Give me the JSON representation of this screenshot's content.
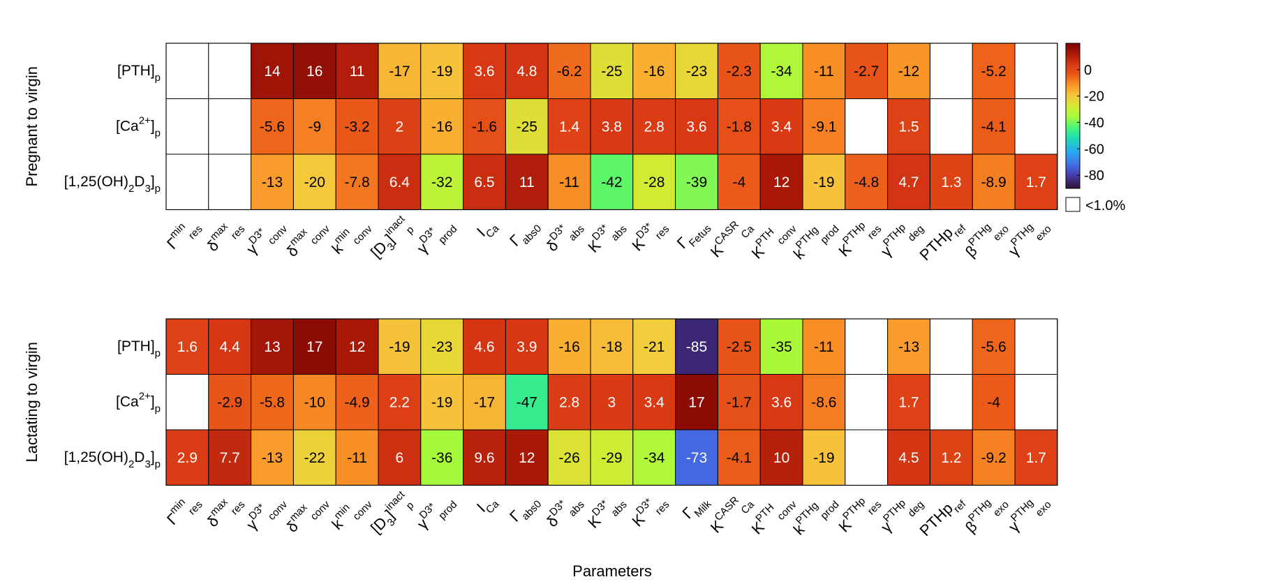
{
  "xlabel": "Parameters",
  "legend_na_label": "<1.0%",
  "colorbar_ticks": [
    0,
    -20,
    -40,
    -60,
    -80
  ],
  "row_labels": [
    {
      "main": "[PTH]",
      "sub": "p"
    },
    {
      "main": "[Ca",
      "sup": "2+",
      "after": "]",
      "sub": "p"
    },
    {
      "main": "[1,25(OH)",
      "sub1": "2",
      "mid": "D",
      "sub2": "3",
      "after": "]",
      "sub": "p"
    }
  ],
  "chart_data": [
    {
      "type": "heatmap",
      "ylabel": "Pregnant to virgin",
      "rows": [
        "[PTH]p",
        "[Ca2+]p",
        "[1,25(OH)2D3]p"
      ],
      "columns": [
        "Γres min",
        "δres max",
        "γconv D3*",
        "δconv max",
        "kconv min",
        "[D3]p inact",
        "γprod D3*",
        "ICa",
        "Γabs0",
        "δabs D3*",
        "Kabs D3*",
        "Kres D3*",
        "ΓFetus",
        "KCa CASR",
        "Kconv PTH",
        "kprod PTHg",
        "Kres PTHp",
        "γdeg PTHp",
        "PTHp ref",
        "βexo PTHg",
        "γexo PTHg"
      ],
      "values": [
        [
          null,
          null,
          14,
          16,
          11,
          -17,
          -19,
          3.6,
          4.8,
          -6.2,
          -25,
          -16,
          -23,
          -2.3,
          -34,
          -11,
          -2.7,
          -12,
          null,
          -5.2,
          null
        ],
        [
          null,
          null,
          -5.6,
          -9,
          -3.2,
          2,
          -16,
          -1.6,
          -25,
          1.4,
          3.8,
          2.8,
          3.6,
          -1.8,
          3.4,
          -9.1,
          null,
          1.5,
          null,
          -4.1,
          null
        ],
        [
          null,
          null,
          -13,
          -20,
          -7.8,
          6.4,
          -32,
          6.5,
          11,
          -11,
          -42,
          -28,
          -39,
          -4,
          12,
          -19,
          -4.8,
          4.7,
          1.3,
          -8.9,
          1.7
        ]
      ],
      "color_range": [
        -90,
        20
      ]
    },
    {
      "type": "heatmap",
      "ylabel": "Lactating to virgin",
      "rows": [
        "[PTH]p",
        "[Ca2+]p",
        "[1,25(OH)2D3]p"
      ],
      "columns": [
        "Γres min",
        "δres max",
        "γconv D3*",
        "δconv max",
        "kconv min",
        "[D3]p inact",
        "γprod D3*",
        "ICa",
        "Γabs0",
        "δabs D3*",
        "Kabs D3*",
        "Kres D3*",
        "ΓMilk",
        "KCa CASR",
        "Kconv PTH",
        "kprod PTHg",
        "Kres PTHp",
        "γdeg PTHp",
        "PTHp ref",
        "βexo PTHg",
        "γexo PTHg"
      ],
      "values": [
        [
          1.6,
          4.4,
          13,
          17,
          12,
          -19,
          -23,
          4.6,
          3.9,
          -16,
          -18,
          -21,
          -85,
          -2.5,
          -35,
          -11,
          null,
          -13,
          null,
          -5.6,
          null
        ],
        [
          null,
          -2.9,
          -5.8,
          -10,
          -4.9,
          2.2,
          -19,
          -17,
          -47,
          2.8,
          3,
          3.4,
          17,
          -1.7,
          3.6,
          -8.6,
          null,
          1.7,
          null,
          -4,
          null
        ],
        [
          2.9,
          7.7,
          -13,
          -22,
          -11,
          6,
          -36,
          9.6,
          12,
          -26,
          -29,
          -34,
          -73,
          -4.1,
          10,
          -19,
          null,
          4.5,
          1.2,
          -9.2,
          1.7
        ]
      ],
      "color_range": [
        -90,
        20
      ]
    }
  ],
  "column_labels": [
    [
      {
        "base": "Γ",
        "sup": "min",
        "sub": "res"
      },
      {
        "base": "δ",
        "sup": "max",
        "sub": "res"
      },
      {
        "base": "γ",
        "sup": "D3*",
        "sub": "conv"
      },
      {
        "base": "δ",
        "sup": "max",
        "sub": "conv"
      },
      {
        "base": "k",
        "sup": "min",
        "sub": "conv"
      },
      {
        "base": "[D",
        "mid_sub": "3",
        "after": "]",
        "sup": "inact",
        "sub": "p"
      },
      {
        "base": "γ",
        "sup": "D3*",
        "sub": "prod"
      },
      {
        "base": "I",
        "sup": "",
        "sub": "Ca"
      },
      {
        "base": "Γ",
        "sup": "",
        "sub": "abs0"
      },
      {
        "base": "δ",
        "sup": "D3*",
        "sub": "abs"
      },
      {
        "base": "K",
        "sup": "D3*",
        "sub": "abs"
      },
      {
        "base": "K",
        "sup": "D3*",
        "sub": "res"
      },
      {
        "base": "Γ",
        "sup": "",
        "sub": "Fetus"
      },
      {
        "base": "K",
        "sup": "CASR",
        "sub": "Ca"
      },
      {
        "base": "K",
        "sup": "PTH",
        "sub": "conv"
      },
      {
        "base": "k",
        "sup": "PTHg",
        "sub": "prod"
      },
      {
        "base": "K",
        "sup": "PTHp",
        "sub": "res"
      },
      {
        "base": "γ",
        "sup": "PTHp",
        "sub": "deg"
      },
      {
        "base": "PTHp",
        "sup": "",
        "sub": "ref"
      },
      {
        "base": "β",
        "sup": "PTHg",
        "sub": "exo"
      },
      {
        "base": "γ",
        "sup": "PTHg",
        "sub": "exo"
      }
    ],
    [
      {
        "base": "Γ",
        "sup": "min",
        "sub": "res"
      },
      {
        "base": "δ",
        "sup": "max",
        "sub": "res"
      },
      {
        "base": "γ",
        "sup": "D3*",
        "sub": "conv"
      },
      {
        "base": "δ",
        "sup": "max",
        "sub": "conv"
      },
      {
        "base": "k",
        "sup": "min",
        "sub": "conv"
      },
      {
        "base": "[D",
        "mid_sub": "3",
        "after": "]",
        "sup": "inact",
        "sub": "p"
      },
      {
        "base": "γ",
        "sup": "D3*",
        "sub": "prod"
      },
      {
        "base": "I",
        "sup": "",
        "sub": "Ca"
      },
      {
        "base": "Γ",
        "sup": "",
        "sub": "abs0"
      },
      {
        "base": "δ",
        "sup": "D3*",
        "sub": "abs"
      },
      {
        "base": "K",
        "sup": "D3*",
        "sub": "abs"
      },
      {
        "base": "K",
        "sup": "D3*",
        "sub": "res"
      },
      {
        "base": "Γ",
        "sup": "",
        "sub": "Milk"
      },
      {
        "base": "K",
        "sup": "CASR",
        "sub": "Ca"
      },
      {
        "base": "K",
        "sup": "PTH",
        "sub": "conv"
      },
      {
        "base": "k",
        "sup": "PTHg",
        "sub": "prod"
      },
      {
        "base": "K",
        "sup": "PTHp",
        "sub": "res"
      },
      {
        "base": "γ",
        "sup": "PTHp",
        "sub": "deg"
      },
      {
        "base": "PTHp",
        "sup": "",
        "sub": "ref"
      },
      {
        "base": "β",
        "sup": "PTHg",
        "sub": "exo"
      },
      {
        "base": "γ",
        "sup": "PTHg",
        "sub": "exo"
      }
    ]
  ]
}
